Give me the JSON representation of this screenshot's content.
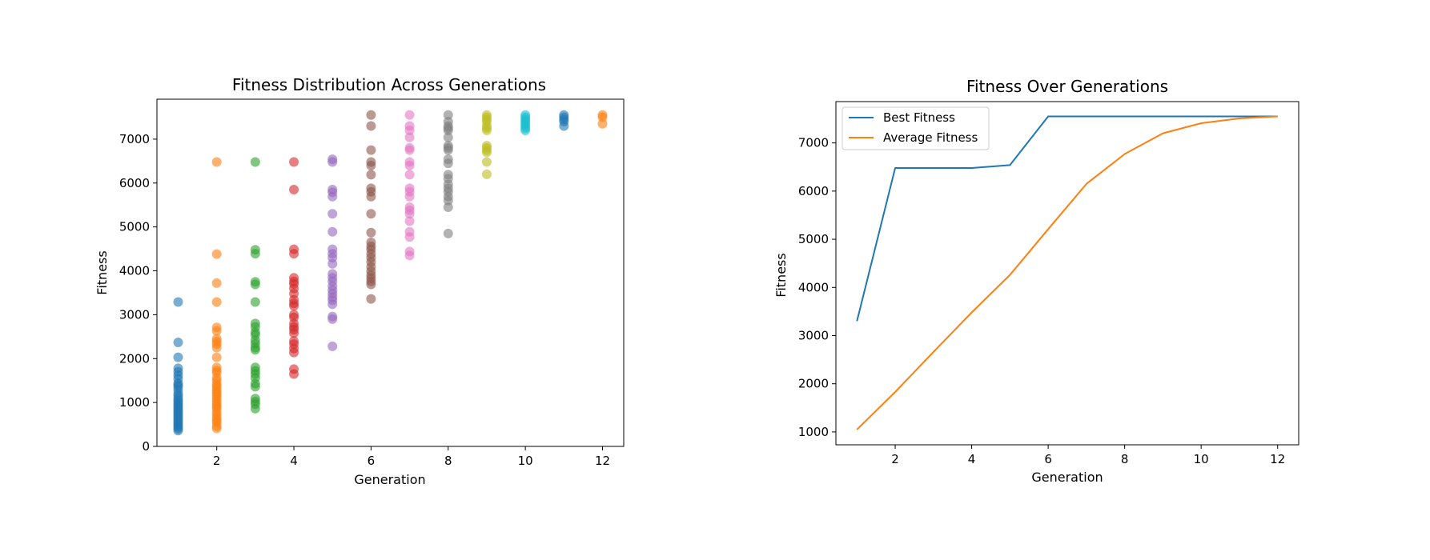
{
  "chart_data": [
    {
      "type": "scatter",
      "title": "Fitness Distribution Across Generations",
      "xlabel": "Generation",
      "ylabel": "Fitness",
      "xlim": [
        0.45,
        12.55
      ],
      "ylim": [
        0,
        7910
      ],
      "xticks": [
        2,
        4,
        6,
        8,
        10,
        12
      ],
      "yticks": [
        0,
        1000,
        2000,
        3000,
        4000,
        5000,
        6000,
        7000
      ],
      "grid": false,
      "series": [
        {
          "x": 1,
          "color": "#1f77b4",
          "values": [
            3290,
            2370,
            2030,
            1780,
            1700,
            1620,
            1540,
            1440,
            1400,
            1350,
            1280,
            1200,
            1150,
            1090,
            1050,
            1000,
            960,
            920,
            880,
            840,
            800,
            760,
            720,
            680,
            640,
            600,
            560,
            520,
            480,
            440,
            400,
            360
          ]
        },
        {
          "x": 2,
          "color": "#ff7f0e",
          "values": [
            6480,
            4380,
            3720,
            3290,
            2710,
            2630,
            2450,
            2390,
            2330,
            2250,
            2030,
            1800,
            1730,
            1680,
            1560,
            1500,
            1420,
            1370,
            1310,
            1250,
            1200,
            1140,
            1080,
            1020,
            960,
            910,
            860,
            780,
            720,
            650,
            590,
            540,
            460,
            410
          ]
        },
        {
          "x": 3,
          "color": "#2ca02c",
          "values": [
            6480,
            4480,
            4390,
            3750,
            3690,
            3290,
            2800,
            2720,
            2600,
            2540,
            2420,
            2340,
            2250,
            2200,
            1800,
            1720,
            1650,
            1560,
            1430,
            1360,
            1090,
            1020,
            960,
            860
          ]
        },
        {
          "x": 4,
          "color": "#d62728",
          "values": [
            6480,
            5850,
            4490,
            4390,
            3840,
            3760,
            3700,
            3600,
            3480,
            3340,
            3260,
            3200,
            3000,
            2940,
            2800,
            2720,
            2660,
            2580,
            2400,
            2330,
            2230,
            2140,
            1760,
            1650
          ]
        },
        {
          "x": 5,
          "color": "#9467bd",
          "values": [
            6540,
            6480,
            5850,
            5790,
            5690,
            5300,
            4890,
            4490,
            4390,
            4300,
            4160,
            3930,
            3840,
            3760,
            3650,
            3560,
            3480,
            3400,
            3330,
            3240,
            2960,
            2900,
            2280
          ]
        },
        {
          "x": 6,
          "color": "#8c564b",
          "values": [
            7550,
            7300,
            6750,
            6480,
            6400,
            6190,
            5880,
            5800,
            5690,
            5300,
            4870,
            4650,
            4560,
            4490,
            4390,
            4300,
            4200,
            4090,
            3990,
            3900,
            3830,
            3760,
            3690,
            3360
          ]
        },
        {
          "x": 7,
          "color": "#e377c2",
          "values": [
            7550,
            7300,
            7200,
            7040,
            6800,
            6750,
            6480,
            6400,
            6190,
            5880,
            5800,
            5690,
            5450,
            5380,
            5300,
            5130,
            4890,
            4770,
            4440,
            4350
          ]
        },
        {
          "x": 8,
          "color": "#7f7f7f",
          "values": [
            7550,
            7400,
            7300,
            7250,
            7200,
            7040,
            6850,
            6800,
            6750,
            6540,
            6450,
            6190,
            6100,
            5970,
            5880,
            5800,
            5690,
            5600,
            5450,
            4850
          ]
        },
        {
          "x": 9,
          "color": "#bcbd22",
          "values": [
            7550,
            7500,
            7450,
            7400,
            7300,
            7250,
            7200,
            6850,
            6800,
            6750,
            6700,
            6480,
            6200
          ]
        },
        {
          "x": 10,
          "color": "#17becf",
          "values": [
            7550,
            7500,
            7450,
            7400,
            7350,
            7300,
            7250,
            7200
          ]
        },
        {
          "x": 11,
          "color": "#1f77b4",
          "values": [
            7550,
            7500,
            7450,
            7400,
            7300
          ]
        },
        {
          "x": 12,
          "color": "#ff7f0e",
          "values": [
            7550,
            7500,
            7350
          ]
        }
      ]
    },
    {
      "type": "line",
      "title": "Fitness Over Generations",
      "xlabel": "Generation",
      "ylabel": "Fitness",
      "xlim": [
        0.45,
        12.55
      ],
      "ylim": [
        733,
        7858
      ],
      "xticks": [
        2,
        4,
        6,
        8,
        10,
        12
      ],
      "yticks": [
        1000,
        2000,
        3000,
        4000,
        5000,
        6000,
        7000
      ],
      "grid": false,
      "legend_position": "upper-left",
      "x": [
        1,
        2,
        3,
        4,
        5,
        6,
        7,
        8,
        9,
        10,
        11,
        12
      ],
      "series": [
        {
          "name": "Best Fitness",
          "color": "#1f77b4",
          "values": [
            3300,
            6480,
            6480,
            6480,
            6540,
            7550,
            7550,
            7550,
            7550,
            7550,
            7550,
            7550
          ]
        },
        {
          "name": "Average Fitness",
          "color": "#ff7f0e",
          "values": [
            1050,
            1830,
            2660,
            3480,
            4260,
            5210,
            6150,
            6770,
            7200,
            7410,
            7510,
            7550
          ]
        }
      ]
    }
  ]
}
